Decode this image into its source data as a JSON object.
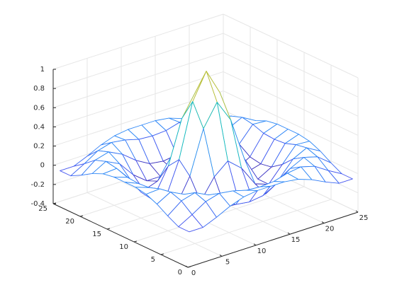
{
  "chart_data": {
    "type": "mesh",
    "x": [
      1,
      3,
      5,
      7,
      9,
      11,
      13,
      15,
      17,
      19,
      21,
      23,
      25
    ],
    "y": [
      1,
      3,
      5,
      7,
      9,
      11,
      13,
      15,
      17,
      19,
      21,
      23,
      25
    ],
    "z": [
      [
        -0.08,
        -0.08,
        -0.02,
        0.05,
        0.1,
        0.12,
        0.12,
        0.12,
        0.1,
        0.05,
        -0.02,
        -0.08,
        -0.08
      ],
      [
        -0.08,
        0,
        0.09,
        0.13,
        0.11,
        0.07,
        0.06,
        0.07,
        0.11,
        0.13,
        0.09,
        0,
        -0.08
      ],
      [
        -0.02,
        0.09,
        0.13,
        0.06,
        -0.05,
        -0.13,
        -0.15,
        -0.13,
        -0.05,
        0.06,
        0.13,
        0.09,
        -0.02
      ],
      [
        0.05,
        0.13,
        0.06,
        -0.1,
        -0.21,
        -0.21,
        -0.19,
        -0.21,
        -0.21,
        -0.1,
        0.06,
        0.13,
        0.05
      ],
      [
        0.1,
        0.11,
        -0.05,
        -0.21,
        -0.16,
        0.05,
        0.17,
        0.05,
        -0.16,
        -0.21,
        -0.05,
        0.11,
        0.1
      ],
      [
        0.12,
        0.07,
        -0.13,
        -0.21,
        0.05,
        0.5,
        0.73,
        0.5,
        0.05,
        -0.21,
        -0.13,
        0.07,
        0.12
      ],
      [
        0.12,
        0.06,
        -0.15,
        -0.19,
        0.17,
        0.73,
        1,
        0.73,
        0.17,
        -0.19,
        -0.15,
        0.06,
        0.12
      ],
      [
        0.12,
        0.07,
        -0.13,
        -0.21,
        0.05,
        0.5,
        0.73,
        0.5,
        0.05,
        -0.21,
        -0.13,
        0.07,
        0.12
      ],
      [
        0.1,
        0.11,
        -0.05,
        -0.21,
        -0.16,
        0.05,
        0.17,
        0.05,
        -0.16,
        -0.21,
        -0.05,
        0.11,
        0.1
      ],
      [
        0.05,
        0.13,
        0.06,
        -0.1,
        -0.21,
        -0.21,
        -0.19,
        -0.21,
        -0.21,
        -0.1,
        0.06,
        0.13,
        0.05
      ],
      [
        -0.02,
        0.09,
        0.13,
        0.06,
        -0.05,
        -0.13,
        -0.15,
        -0.13,
        -0.05,
        0.06,
        0.13,
        0.09,
        -0.02
      ],
      [
        -0.08,
        0,
        0.09,
        0.13,
        0.11,
        0.07,
        0.06,
        0.07,
        0.11,
        0.13,
        0.09,
        0,
        -0.08
      ],
      [
        -0.08,
        -0.08,
        -0.02,
        0.05,
        0.1,
        0.12,
        0.12,
        0.12,
        0.1,
        0.05,
        -0.02,
        -0.08,
        -0.08
      ]
    ],
    "colormap": [
      "#3e26a8",
      "#4354f0",
      "#2e87f7",
      "#1caadf",
      "#14bfb5",
      "#4bc97f",
      "#a3c23f",
      "#e9b92b",
      "#f9e11b"
    ],
    "xlim": [
      0,
      25
    ],
    "ylim": [
      0,
      25
    ],
    "zlim": [
      -0.4,
      1
    ],
    "xticks": [
      0,
      5,
      10,
      15,
      20,
      25
    ],
    "yticks": [
      0,
      5,
      10,
      15,
      20,
      25
    ],
    "zticks": [
      -0.4,
      -0.2,
      0,
      0.2,
      0.4,
      0.6,
      0.8,
      1
    ],
    "grid": true
  }
}
